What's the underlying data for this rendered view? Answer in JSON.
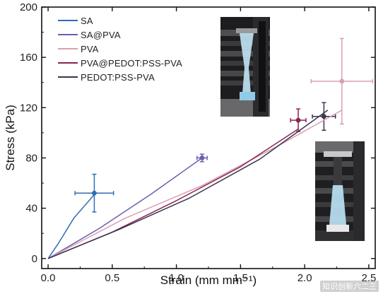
{
  "chart_data": {
    "type": "line",
    "xlabel": "Strain (mm mm⁻¹)",
    "ylabel": "Stress (kPa)",
    "xlim": [
      -0.05,
      2.55
    ],
    "ylim": [
      -8,
      200
    ],
    "xticks": [
      "0.0",
      "0.5",
      "1.0",
      "1.5",
      "2.0",
      "2.5"
    ],
    "yticks": [
      "0",
      "40",
      "80",
      "120",
      "160",
      "200"
    ],
    "xtick_values": [
      0,
      0.5,
      1.0,
      1.5,
      2.0,
      2.5
    ],
    "ytick_values": [
      0,
      40,
      80,
      120,
      160,
      200
    ],
    "grid": false,
    "legend_position": "top-left",
    "series": [
      {
        "name": "SA",
        "color": "#2f6db5",
        "x": [
          0,
          0.08,
          0.2,
          0.37
        ],
        "y": [
          0,
          12,
          32,
          52
        ],
        "err": {
          "x": 0.36,
          "y": 52,
          "xerr": 0.15,
          "yerr": 15
        }
      },
      {
        "name": "SA@PVA",
        "color": "#6a5fb0",
        "x": [
          0,
          0.4,
          0.8,
          1.2
        ],
        "y": [
          0,
          24,
          51,
          80
        ],
        "err": {
          "x": 1.2,
          "y": 80,
          "xerr": 0.04,
          "yerr": 3
        }
      },
      {
        "name": "PVA",
        "color": "#d9a0b3",
        "x": [
          0,
          0.6,
          1.2,
          1.8,
          2.29
        ],
        "y": [
          0,
          32,
          58,
          90,
          118
        ],
        "err": {
          "x": 2.29,
          "y": 141,
          "xerr": 0.24,
          "yerr": 34
        }
      },
      {
        "name": "PVA@PEDOT:PSS-PVA",
        "color": "#8b2452",
        "x": [
          0,
          0.5,
          1.0,
          1.5,
          1.95
        ],
        "y": [
          0,
          21,
          46,
          73,
          103
        ],
        "err": {
          "x": 1.95,
          "y": 110,
          "xerr": 0.06,
          "yerr": 9
        }
      },
      {
        "name": "PEDOT:PSS-PVA",
        "color": "#3a3450",
        "x": [
          0,
          0.55,
          1.1,
          1.65,
          2.18
        ],
        "y": [
          0,
          23,
          48,
          79,
          118
        ],
        "err": {
          "x": 2.15,
          "y": 113,
          "xerr": 0.09,
          "yerr": 11
        }
      }
    ],
    "insets": [
      "upper specimen photo",
      "lower specimen photo"
    ]
  },
  "watermark": "知识创新六二三"
}
